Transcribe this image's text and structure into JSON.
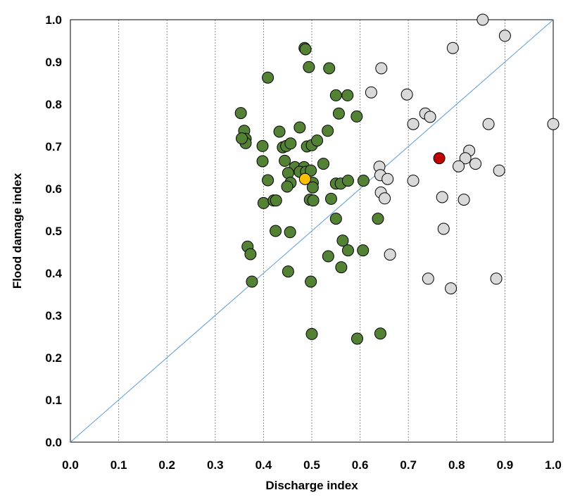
{
  "chart_data": {
    "type": "scatter",
    "title": "",
    "xlabel": "Discharge index",
    "ylabel": "Flood damage index",
    "xlim": [
      0,
      1
    ],
    "ylim": [
      0,
      1
    ],
    "x_ticks": [
      "0.0",
      "0.1",
      "0.2",
      "0.3",
      "0.4",
      "0.5",
      "0.6",
      "0.7",
      "0.8",
      "0.9",
      "1.0"
    ],
    "y_ticks": [
      "0.0",
      "0.1",
      "0.2",
      "0.3",
      "0.4",
      "0.5",
      "0.6",
      "0.7",
      "0.8",
      "0.9",
      "1.0"
    ],
    "grid": "vertical dotted",
    "reference_line": {
      "from": [
        0,
        0
      ],
      "to": [
        1,
        1
      ],
      "color": "#5b9bd5"
    },
    "series": [
      {
        "color": "#548235",
        "points": [
          [
            0.485,
            0.933
          ],
          [
            0.487,
            0.93
          ],
          [
            0.494,
            0.888
          ],
          [
            0.536,
            0.885
          ],
          [
            0.409,
            0.863
          ],
          [
            0.55,
            0.821
          ],
          [
            0.574,
            0.821
          ],
          [
            0.556,
            0.778
          ],
          [
            0.593,
            0.771
          ],
          [
            0.353,
            0.779
          ],
          [
            0.36,
            0.737
          ],
          [
            0.433,
            0.735
          ],
          [
            0.475,
            0.745
          ],
          [
            0.533,
            0.737
          ],
          [
            0.363,
            0.718
          ],
          [
            0.363,
            0.708
          ],
          [
            0.355,
            0.719
          ],
          [
            0.398,
            0.701
          ],
          [
            0.44,
            0.698
          ],
          [
            0.447,
            0.701
          ],
          [
            0.456,
            0.707
          ],
          [
            0.49,
            0.7
          ],
          [
            0.5,
            0.703
          ],
          [
            0.511,
            0.714
          ],
          [
            0.444,
            0.666
          ],
          [
            0.398,
            0.665
          ],
          [
            0.465,
            0.651
          ],
          [
            0.484,
            0.651
          ],
          [
            0.475,
            0.64
          ],
          [
            0.488,
            0.64
          ],
          [
            0.498,
            0.643
          ],
          [
            0.524,
            0.659
          ],
          [
            0.451,
            0.637
          ],
          [
            0.409,
            0.62
          ],
          [
            0.456,
            0.614
          ],
          [
            0.449,
            0.605
          ],
          [
            0.502,
            0.614
          ],
          [
            0.502,
            0.603
          ],
          [
            0.55,
            0.612
          ],
          [
            0.56,
            0.612
          ],
          [
            0.575,
            0.619
          ],
          [
            0.607,
            0.619
          ],
          [
            0.4,
            0.566
          ],
          [
            0.421,
            0.572
          ],
          [
            0.426,
            0.572
          ],
          [
            0.496,
            0.574
          ],
          [
            0.503,
            0.572
          ],
          [
            0.54,
            0.576
          ],
          [
            0.55,
            0.529
          ],
          [
            0.637,
            0.529
          ],
          [
            0.425,
            0.5
          ],
          [
            0.455,
            0.497
          ],
          [
            0.564,
            0.477
          ],
          [
            0.367,
            0.463
          ],
          [
            0.373,
            0.445
          ],
          [
            0.575,
            0.454
          ],
          [
            0.606,
            0.454
          ],
          [
            0.534,
            0.44
          ],
          [
            0.561,
            0.414
          ],
          [
            0.451,
            0.404
          ],
          [
            0.376,
            0.38
          ],
          [
            0.498,
            0.38
          ],
          [
            0.5,
            0.256
          ],
          [
            0.594,
            0.245
          ],
          [
            0.642,
            0.257
          ]
        ]
      },
      {
        "color": "#d9d9d9",
        "points": [
          [
            0.854,
            1.0
          ],
          [
            0.9,
            0.962
          ],
          [
            0.792,
            0.933
          ],
          [
            0.644,
            0.885
          ],
          [
            0.623,
            0.828
          ],
          [
            0.697,
            0.823
          ],
          [
            0.735,
            0.778
          ],
          [
            0.745,
            0.77
          ],
          [
            0.71,
            0.753
          ],
          [
            0.866,
            0.753
          ],
          [
            1.0,
            0.753
          ],
          [
            0.826,
            0.69
          ],
          [
            0.818,
            0.672
          ],
          [
            0.839,
            0.659
          ],
          [
            0.804,
            0.653
          ],
          [
            0.888,
            0.643
          ],
          [
            0.64,
            0.652
          ],
          [
            0.642,
            0.632
          ],
          [
            0.657,
            0.623
          ],
          [
            0.71,
            0.619
          ],
          [
            0.643,
            0.591
          ],
          [
            0.651,
            0.577
          ],
          [
            0.77,
            0.58
          ],
          [
            0.815,
            0.574
          ],
          [
            0.773,
            0.505
          ],
          [
            0.662,
            0.444
          ],
          [
            0.741,
            0.387
          ],
          [
            0.788,
            0.364
          ],
          [
            0.882,
            0.387
          ]
        ]
      },
      {
        "color": "#c00000",
        "points": [
          [
            0.764,
            0.672
          ]
        ]
      },
      {
        "color": "#ffc000",
        "points": [
          [
            0.486,
            0.623
          ]
        ]
      }
    ]
  }
}
